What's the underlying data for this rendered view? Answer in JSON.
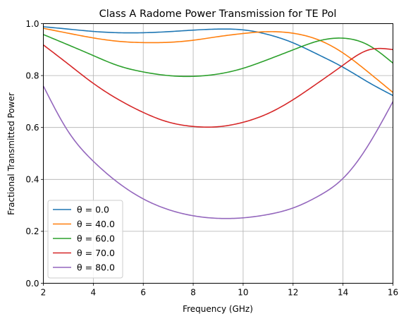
{
  "chart_data": {
    "type": "line",
    "title": "Class A Radome Power Transmission for TE Pol",
    "xlabel": "Frequency (GHz)",
    "ylabel": "Fractional Transmitted Power",
    "xlim": [
      2,
      16
    ],
    "ylim": [
      0,
      1
    ],
    "xticks": [
      2,
      4,
      6,
      8,
      10,
      12,
      14,
      16
    ],
    "yticks": [
      0.0,
      0.2,
      0.4,
      0.6,
      0.8,
      1.0
    ],
    "xtick_labels": [
      "2",
      "4",
      "6",
      "8",
      "10",
      "12",
      "14",
      "16"
    ],
    "ytick_labels": [
      "0.0",
      "0.2",
      "0.4",
      "0.6",
      "0.8",
      "1.0"
    ],
    "grid": true,
    "legend_position": "lower-left",
    "x": [
      2,
      3,
      4,
      5,
      6,
      7,
      8,
      9,
      10,
      11,
      12,
      13,
      14,
      15,
      16
    ],
    "series": [
      {
        "name": "θ = 0.0",
        "color": "#1f77b4",
        "values": [
          0.988,
          0.979,
          0.97,
          0.965,
          0.965,
          0.969,
          0.975,
          0.979,
          0.976,
          0.958,
          0.926,
          0.881,
          0.832,
          0.775,
          0.723
        ]
      },
      {
        "name": "θ = 40.0",
        "color": "#ff7f0e",
        "values": [
          0.982,
          0.963,
          0.945,
          0.932,
          0.927,
          0.928,
          0.936,
          0.95,
          0.962,
          0.969,
          0.963,
          0.938,
          0.887,
          0.814,
          0.735
        ]
      },
      {
        "name": "θ = 60.0",
        "color": "#2ca02c",
        "values": [
          0.958,
          0.918,
          0.877,
          0.838,
          0.814,
          0.8,
          0.797,
          0.806,
          0.828,
          0.862,
          0.899,
          0.933,
          0.944,
          0.918,
          0.848
        ]
      },
      {
        "name": "θ = 70.0",
        "color": "#d62728",
        "values": [
          0.918,
          0.844,
          0.77,
          0.708,
          0.658,
          0.621,
          0.604,
          0.603,
          0.62,
          0.654,
          0.707,
          0.772,
          0.84,
          0.898,
          0.9
        ]
      },
      {
        "name": "θ = 80.0",
        "color": "#9467bd",
        "values": [
          0.76,
          0.584,
          0.47,
          0.387,
          0.325,
          0.284,
          0.26,
          0.25,
          0.252,
          0.265,
          0.29,
          0.335,
          0.404,
          0.53,
          0.7
        ]
      }
    ]
  }
}
